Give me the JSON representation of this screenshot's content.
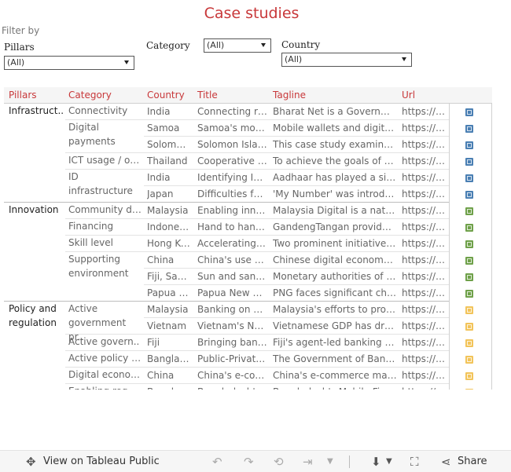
{
  "title": "Case studies",
  "filter_by": "Filter by",
  "filters": [
    {
      "label": "Pillars",
      "value": "(All)"
    },
    {
      "label": "Category",
      "value": "(All)"
    },
    {
      "label": "Country",
      "value": "(All)"
    }
  ],
  "columns": [
    "Pillars",
    "Category",
    "Country",
    "Title",
    "Tagline",
    "Url"
  ],
  "pillars": [
    {
      "name": "Infrastruct..",
      "icon": "infrastructure-icon"
    },
    {
      "name": "Innovation",
      "icon": "innovation-icon"
    },
    {
      "name": "Policy and regulation",
      "icon": "policy-icon"
    }
  ],
  "categories": [
    "Connectivity",
    "Digital payments",
    "ICT usage / ow..",
    "ID infrastructure",
    "Community dev..",
    "Financing",
    "Skill level",
    "Supporting environment",
    "Active government pr..",
    "Active govern..",
    "Active policy pr..",
    "Digital econom..",
    "Enabling regul.."
  ],
  "rows": [
    {
      "country": "India",
      "title": "Connecting rur..",
      "tagline": "Bharat Net is a Governmen..",
      "url": "https://b.."
    },
    {
      "country": "Samoa",
      "title": "Samoa's mobil..",
      "tagline": "Mobile wallets and digital ..",
      "url": "https://b.."
    },
    {
      "country": "Solomon..",
      "title": "Solomon Islan..",
      "tagline": "This case study examines t..",
      "url": "https://b.."
    },
    {
      "country": "Thailand",
      "title": "Cooperative c..",
      "tagline": "To achieve the goals of the..",
      "url": "https://b.."
    },
    {
      "country": "India",
      "title": "Identifying Ind..",
      "tagline": "Aadhaar has played a signi..",
      "url": "https://b.."
    },
    {
      "country": "Japan",
      "title": "Difficulties fac..",
      "tagline": "'My Number' was introduc..",
      "url": "https://b.."
    },
    {
      "country": "Malaysia",
      "title": "Enabling innov..",
      "tagline": "Malaysia Digital is a natio..",
      "url": "https://b.."
    },
    {
      "country": "Indonesia",
      "title": "Hand to hand i..",
      "tagline": "GandengTangan provides ..",
      "url": "https://b.."
    },
    {
      "country": "Hong Ko..",
      "title": "Accelerating fi..",
      "tagline": "Two prominent initiatives ..",
      "url": "https://b.."
    },
    {
      "country": "China",
      "title": "China's use of ..",
      "tagline": "Chinese digital economy p..",
      "url": "https://b.."
    },
    {
      "country": "Fiji, Sam..",
      "title": "Sun and sandb..",
      "tagline": "Monetary authorities of th..",
      "url": "https://b.."
    },
    {
      "country": "Papua N..",
      "title": "Papua New Gu..",
      "tagline": "PNG faces significant chall..",
      "url": "https://b.."
    },
    {
      "country": "Malaysia",
      "title": "Banking on pol..",
      "tagline": "Malaysia's efforts to prom..",
      "url": "https://b.."
    },
    {
      "country": "Vietnam",
      "title": "Vietnam's Nat..",
      "tagline": "Vietnamese GDP has drast..",
      "url": "https://b.."
    },
    {
      "country": "Fiji",
      "title": "Bringing banki..",
      "tagline": "Fiji's agent-led banking mo..",
      "url": "https://b.."
    },
    {
      "country": "Banglad..",
      "title": "Public-Private ..",
      "tagline": "The Government of Bangla..",
      "url": "https://b.."
    },
    {
      "country": "China",
      "title": "China's e-com..",
      "tagline": "China's e-commerce marke..",
      "url": "https://b.."
    },
    {
      "country": "Banglad..",
      "title": "Bangladesh's..",
      "tagline": "Bangladesh's Mobile Finan..",
      "url": "https://b.."
    }
  ],
  "toolbar": {
    "view": "View on Tableau Public",
    "share": "Share"
  }
}
